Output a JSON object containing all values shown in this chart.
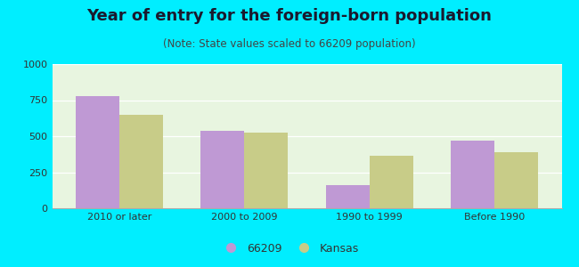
{
  "title": "Year of entry for the foreign-born population",
  "subtitle": "(Note: State values scaled to 66209 population)",
  "categories": [
    "2010 or later",
    "2000 to 2009",
    "1990 to 1999",
    "Before 1990"
  ],
  "values_66209": [
    775,
    540,
    160,
    470
  ],
  "values_kansas": [
    650,
    525,
    365,
    390
  ],
  "color_66209": "#bf99d4",
  "color_kansas": "#c8cc88",
  "background_outer": "#00eeff",
  "background_inner": "#e8f5e0",
  "ylim": [
    0,
    1000
  ],
  "yticks": [
    0,
    250,
    500,
    750,
    1000
  ],
  "legend_label_1": "66209",
  "legend_label_2": "Kansas",
  "bar_width": 0.35,
  "title_fontsize": 13,
  "subtitle_fontsize": 8.5,
  "tick_fontsize": 8,
  "legend_fontsize": 9
}
